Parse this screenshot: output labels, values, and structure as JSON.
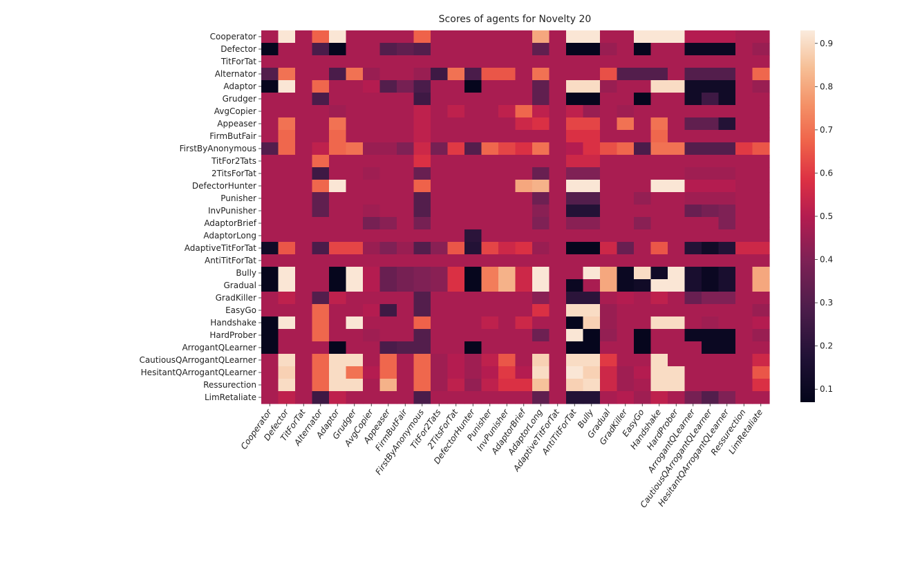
{
  "chart_data": {
    "type": "heatmap",
    "title": "Scores of agents for Novelty 20",
    "xlabel": "",
    "ylabel": "",
    "agents": [
      "Cooperator",
      "Defector",
      "TitForTat",
      "Alternator",
      "Adaptor",
      "Grudger",
      "AvgCopier",
      "Appeaser",
      "FirmButFair",
      "FirstByAnonymous",
      "TitFor2Tats",
      "2TitsForTat",
      "DefectorHunter",
      "Punisher",
      "InvPunisher",
      "AdaptorBrief",
      "AdaptorLong",
      "AdaptiveTitForTat",
      "AntiTitForTat",
      "Bully",
      "Gradual",
      "GradKiller",
      "EasyGo",
      "Handshake",
      "HardProber",
      "ArrogantQLearner",
      "CautiousQArrogantQLearner",
      "HesitantQArrogantQLearner",
      "Ressurection",
      "LimRetaliate"
    ],
    "vmin": 0.07,
    "vmax": 0.93,
    "colorbar": {
      "ticks": [
        0.1,
        0.2,
        0.3,
        0.4,
        0.5,
        0.6,
        0.7,
        0.8,
        0.9
      ],
      "tick_labels": [
        "0.1",
        "0.2",
        "0.3",
        "0.4",
        "0.5",
        "0.6",
        "0.7",
        "0.8",
        "0.9"
      ],
      "colormap": "rocket"
    },
    "values": [
      [
        0.48,
        0.92,
        0.48,
        0.67,
        0.92,
        0.48,
        0.48,
        0.48,
        0.48,
        0.67,
        0.48,
        0.48,
        0.48,
        0.48,
        0.48,
        0.48,
        0.8,
        0.48,
        0.92,
        0.92,
        0.48,
        0.48,
        0.92,
        0.92,
        0.92,
        0.5,
        0.5,
        0.5,
        0.48,
        0.48
      ],
      [
        0.08,
        0.48,
        0.48,
        0.28,
        0.08,
        0.48,
        0.48,
        0.3,
        0.33,
        0.3,
        0.48,
        0.48,
        0.48,
        0.48,
        0.48,
        0.48,
        0.33,
        0.48,
        0.08,
        0.08,
        0.45,
        0.48,
        0.08,
        0.48,
        0.48,
        0.1,
        0.1,
        0.1,
        0.48,
        0.45
      ],
      [
        0.48,
        0.48,
        0.48,
        0.48,
        0.48,
        0.48,
        0.48,
        0.48,
        0.48,
        0.48,
        0.48,
        0.48,
        0.48,
        0.48,
        0.48,
        0.48,
        0.48,
        0.48,
        0.48,
        0.48,
        0.48,
        0.48,
        0.48,
        0.48,
        0.48,
        0.48,
        0.48,
        0.48,
        0.48,
        0.48
      ],
      [
        0.3,
        0.7,
        0.48,
        0.48,
        0.28,
        0.7,
        0.45,
        0.48,
        0.48,
        0.45,
        0.25,
        0.7,
        0.28,
        0.65,
        0.65,
        0.48,
        0.7,
        0.48,
        0.48,
        0.48,
        0.64,
        0.3,
        0.3,
        0.3,
        0.48,
        0.3,
        0.3,
        0.3,
        0.48,
        0.68
      ],
      [
        0.08,
        0.92,
        0.48,
        0.68,
        0.48,
        0.48,
        0.5,
        0.3,
        0.38,
        0.28,
        0.48,
        0.48,
        0.08,
        0.48,
        0.48,
        0.48,
        0.33,
        0.48,
        0.9,
        0.9,
        0.45,
        0.48,
        0.48,
        0.9,
        0.9,
        0.12,
        0.12,
        0.12,
        0.48,
        0.45
      ],
      [
        0.48,
        0.48,
        0.48,
        0.28,
        0.48,
        0.48,
        0.48,
        0.48,
        0.48,
        0.25,
        0.48,
        0.48,
        0.48,
        0.48,
        0.48,
        0.48,
        0.33,
        0.48,
        0.08,
        0.08,
        0.48,
        0.48,
        0.08,
        0.48,
        0.48,
        0.12,
        0.25,
        0.12,
        0.48,
        0.48
      ],
      [
        0.48,
        0.48,
        0.48,
        0.48,
        0.46,
        0.48,
        0.48,
        0.48,
        0.48,
        0.52,
        0.48,
        0.52,
        0.48,
        0.48,
        0.52,
        0.68,
        0.52,
        0.48,
        0.52,
        0.45,
        0.48,
        0.46,
        0.48,
        0.48,
        0.48,
        0.48,
        0.48,
        0.48,
        0.48,
        0.48
      ],
      [
        0.48,
        0.7,
        0.48,
        0.48,
        0.7,
        0.48,
        0.48,
        0.48,
        0.48,
        0.52,
        0.48,
        0.48,
        0.48,
        0.48,
        0.48,
        0.55,
        0.58,
        0.48,
        0.62,
        0.62,
        0.48,
        0.7,
        0.48,
        0.7,
        0.48,
        0.33,
        0.33,
        0.18,
        0.48,
        0.48
      ],
      [
        0.48,
        0.68,
        0.48,
        0.48,
        0.68,
        0.48,
        0.48,
        0.48,
        0.48,
        0.52,
        0.48,
        0.48,
        0.48,
        0.48,
        0.48,
        0.48,
        0.48,
        0.48,
        0.58,
        0.58,
        0.48,
        0.48,
        0.48,
        0.68,
        0.48,
        0.48,
        0.48,
        0.48,
        0.48,
        0.48
      ],
      [
        0.3,
        0.68,
        0.48,
        0.52,
        0.68,
        0.7,
        0.45,
        0.45,
        0.4,
        0.55,
        0.38,
        0.6,
        0.3,
        0.68,
        0.62,
        0.58,
        0.7,
        0.48,
        0.5,
        0.58,
        0.64,
        0.68,
        0.28,
        0.7,
        0.7,
        0.3,
        0.3,
        0.3,
        0.6,
        0.65
      ],
      [
        0.48,
        0.48,
        0.48,
        0.68,
        0.48,
        0.48,
        0.48,
        0.48,
        0.48,
        0.58,
        0.48,
        0.48,
        0.48,
        0.48,
        0.48,
        0.48,
        0.48,
        0.48,
        0.55,
        0.55,
        0.48,
        0.48,
        0.48,
        0.48,
        0.48,
        0.48,
        0.48,
        0.48,
        0.48,
        0.48
      ],
      [
        0.48,
        0.48,
        0.48,
        0.25,
        0.48,
        0.48,
        0.46,
        0.48,
        0.48,
        0.35,
        0.48,
        0.48,
        0.48,
        0.48,
        0.48,
        0.48,
        0.35,
        0.48,
        0.4,
        0.4,
        0.48,
        0.48,
        0.48,
        0.48,
        0.48,
        0.46,
        0.46,
        0.46,
        0.48,
        0.48
      ],
      [
        0.48,
        0.48,
        0.48,
        0.68,
        0.92,
        0.48,
        0.48,
        0.48,
        0.48,
        0.67,
        0.48,
        0.48,
        0.48,
        0.48,
        0.48,
        0.8,
        0.82,
        0.48,
        0.92,
        0.92,
        0.48,
        0.48,
        0.48,
        0.92,
        0.92,
        0.5,
        0.5,
        0.5,
        0.48,
        0.48
      ],
      [
        0.48,
        0.48,
        0.48,
        0.33,
        0.48,
        0.48,
        0.48,
        0.48,
        0.48,
        0.3,
        0.48,
        0.48,
        0.48,
        0.48,
        0.48,
        0.48,
        0.36,
        0.48,
        0.3,
        0.3,
        0.48,
        0.48,
        0.44,
        0.48,
        0.48,
        0.46,
        0.46,
        0.46,
        0.48,
        0.48
      ],
      [
        0.48,
        0.48,
        0.48,
        0.33,
        0.48,
        0.48,
        0.46,
        0.48,
        0.48,
        0.3,
        0.48,
        0.48,
        0.48,
        0.48,
        0.48,
        0.48,
        0.42,
        0.48,
        0.18,
        0.18,
        0.48,
        0.48,
        0.48,
        0.48,
        0.48,
        0.35,
        0.38,
        0.4,
        0.48,
        0.48
      ],
      [
        0.48,
        0.48,
        0.48,
        0.48,
        0.48,
        0.48,
        0.38,
        0.42,
        0.48,
        0.38,
        0.48,
        0.48,
        0.48,
        0.48,
        0.48,
        0.48,
        0.4,
        0.48,
        0.42,
        0.42,
        0.48,
        0.48,
        0.42,
        0.48,
        0.48,
        0.48,
        0.48,
        0.4,
        0.48,
        0.48
      ],
      [
        0.48,
        0.48,
        0.48,
        0.48,
        0.48,
        0.48,
        0.48,
        0.48,
        0.48,
        0.48,
        0.48,
        0.48,
        0.2,
        0.48,
        0.48,
        0.48,
        0.48,
        0.48,
        0.48,
        0.48,
        0.48,
        0.48,
        0.48,
        0.48,
        0.48,
        0.48,
        0.48,
        0.48,
        0.48,
        0.48
      ],
      [
        0.12,
        0.65,
        0.48,
        0.28,
        0.62,
        0.62,
        0.45,
        0.4,
        0.45,
        0.3,
        0.42,
        0.65,
        0.18,
        0.62,
        0.55,
        0.58,
        0.45,
        0.48,
        0.08,
        0.08,
        0.55,
        0.35,
        0.48,
        0.65,
        0.48,
        0.18,
        0.12,
        0.18,
        0.55,
        0.55
      ],
      [
        0.48,
        0.48,
        0.48,
        0.48,
        0.48,
        0.48,
        0.48,
        0.48,
        0.48,
        0.48,
        0.48,
        0.48,
        0.48,
        0.48,
        0.48,
        0.48,
        0.48,
        0.48,
        0.48,
        0.48,
        0.48,
        0.48,
        0.48,
        0.48,
        0.48,
        0.48,
        0.48,
        0.48,
        0.48,
        0.48
      ],
      [
        0.08,
        0.92,
        0.48,
        0.48,
        0.08,
        0.92,
        0.5,
        0.35,
        0.38,
        0.4,
        0.42,
        0.58,
        0.08,
        0.72,
        0.82,
        0.55,
        0.92,
        0.48,
        0.48,
        0.92,
        0.8,
        0.1,
        0.9,
        0.12,
        0.92,
        0.15,
        0.1,
        0.15,
        0.48,
        0.8
      ],
      [
        0.08,
        0.92,
        0.48,
        0.48,
        0.08,
        0.92,
        0.5,
        0.35,
        0.38,
        0.4,
        0.42,
        0.58,
        0.08,
        0.72,
        0.82,
        0.55,
        0.92,
        0.48,
        0.1,
        0.48,
        0.8,
        0.1,
        0.12,
        0.92,
        0.92,
        0.15,
        0.1,
        0.15,
        0.48,
        0.8
      ],
      [
        0.48,
        0.52,
        0.48,
        0.3,
        0.52,
        0.48,
        0.48,
        0.48,
        0.48,
        0.3,
        0.48,
        0.48,
        0.48,
        0.48,
        0.48,
        0.48,
        0.42,
        0.48,
        0.2,
        0.2,
        0.48,
        0.5,
        0.48,
        0.52,
        0.48,
        0.35,
        0.4,
        0.4,
        0.48,
        0.48
      ],
      [
        0.48,
        0.48,
        0.48,
        0.68,
        0.48,
        0.48,
        0.5,
        0.25,
        0.48,
        0.3,
        0.48,
        0.48,
        0.48,
        0.48,
        0.48,
        0.48,
        0.58,
        0.48,
        0.9,
        0.9,
        0.45,
        0.48,
        0.48,
        0.48,
        0.48,
        0.48,
        0.48,
        0.48,
        0.48,
        0.45
      ],
      [
        0.08,
        0.92,
        0.48,
        0.68,
        0.48,
        0.92,
        0.48,
        0.48,
        0.48,
        0.67,
        0.48,
        0.48,
        0.48,
        0.52,
        0.48,
        0.55,
        0.48,
        0.48,
        0.08,
        0.88,
        0.45,
        0.48,
        0.48,
        0.9,
        0.9,
        0.48,
        0.46,
        0.48,
        0.48,
        0.5
      ],
      [
        0.08,
        0.48,
        0.48,
        0.68,
        0.48,
        0.48,
        0.46,
        0.48,
        0.48,
        0.3,
        0.48,
        0.48,
        0.48,
        0.48,
        0.48,
        0.48,
        0.36,
        0.48,
        0.92,
        0.08,
        0.44,
        0.48,
        0.08,
        0.48,
        0.48,
        0.1,
        0.1,
        0.1,
        0.48,
        0.45
      ],
      [
        0.08,
        0.48,
        0.48,
        0.48,
        0.08,
        0.48,
        0.48,
        0.28,
        0.3,
        0.3,
        0.48,
        0.48,
        0.08,
        0.48,
        0.48,
        0.48,
        0.48,
        0.48,
        0.08,
        0.08,
        0.48,
        0.48,
        0.08,
        0.48,
        0.48,
        0.48,
        0.1,
        0.1,
        0.48,
        0.48
      ],
      [
        0.48,
        0.9,
        0.48,
        0.68,
        0.9,
        0.9,
        0.48,
        0.68,
        0.48,
        0.68,
        0.46,
        0.5,
        0.46,
        0.52,
        0.65,
        0.48,
        0.88,
        0.48,
        0.9,
        0.9,
        0.6,
        0.48,
        0.48,
        0.9,
        0.48,
        0.48,
        0.48,
        0.48,
        0.48,
        0.55
      ],
      [
        0.48,
        0.88,
        0.48,
        0.68,
        0.9,
        0.7,
        0.5,
        0.68,
        0.48,
        0.68,
        0.46,
        0.5,
        0.46,
        0.5,
        0.6,
        0.5,
        0.9,
        0.48,
        0.92,
        0.88,
        0.55,
        0.46,
        0.5,
        0.9,
        0.9,
        0.48,
        0.48,
        0.48,
        0.48,
        0.65
      ],
      [
        0.48,
        0.9,
        0.48,
        0.68,
        0.9,
        0.9,
        0.48,
        0.82,
        0.48,
        0.68,
        0.46,
        0.52,
        0.44,
        0.52,
        0.58,
        0.58,
        0.85,
        0.48,
        0.88,
        0.9,
        0.55,
        0.46,
        0.48,
        0.9,
        0.9,
        0.48,
        0.48,
        0.48,
        0.48,
        0.58
      ],
      [
        0.48,
        0.52,
        0.48,
        0.25,
        0.52,
        0.48,
        0.48,
        0.48,
        0.48,
        0.28,
        0.48,
        0.48,
        0.48,
        0.48,
        0.48,
        0.48,
        0.33,
        0.48,
        0.18,
        0.18,
        0.48,
        0.5,
        0.46,
        0.52,
        0.48,
        0.38,
        0.3,
        0.4,
        0.48,
        0.48
      ]
    ]
  }
}
